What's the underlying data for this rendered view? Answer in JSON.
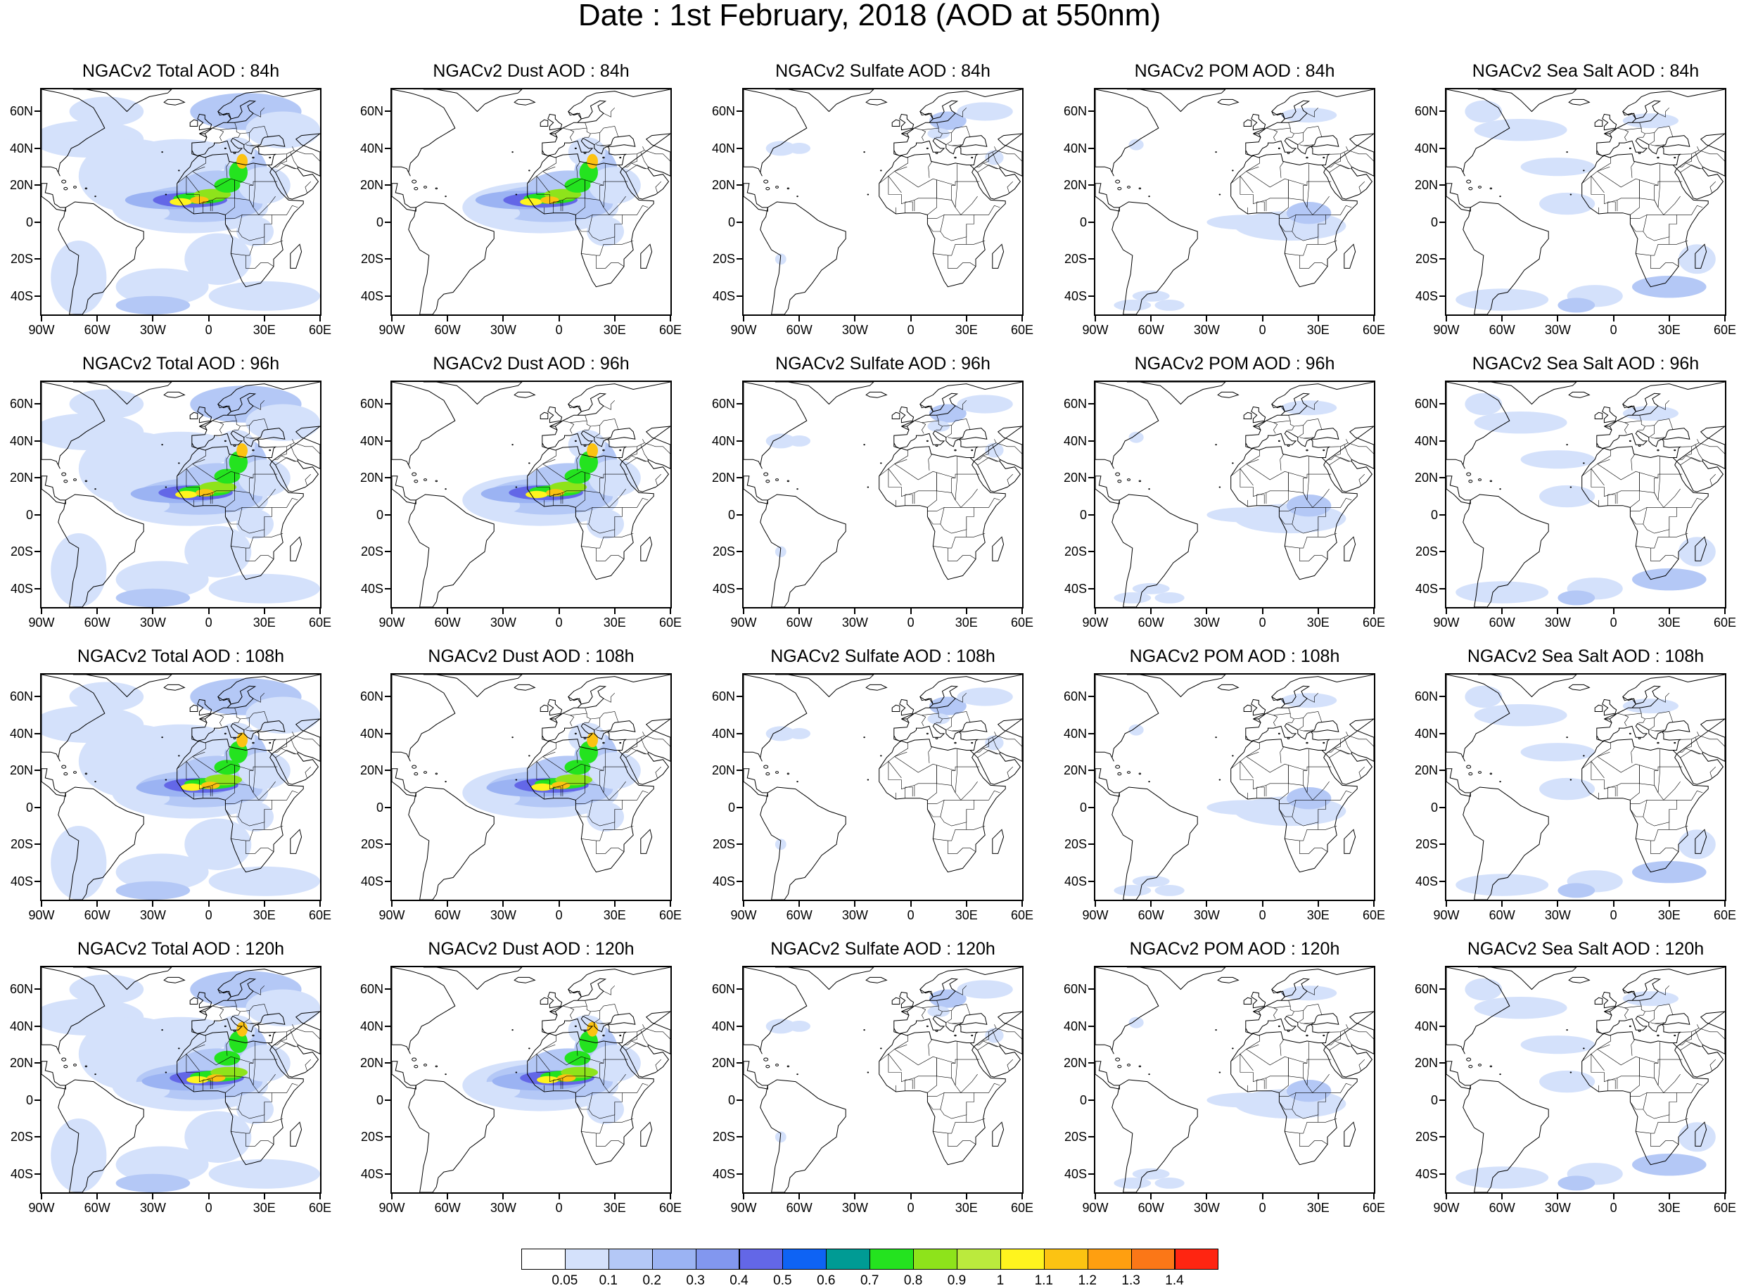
{
  "title": "Date : 1st February, 2018 (AOD at 550nm)",
  "lat_labels": [
    "60N",
    "40N",
    "20N",
    "0",
    "20S",
    "40S"
  ],
  "lon_labels": [
    "90W",
    "60W",
    "30W",
    "0",
    "30E",
    "60E"
  ],
  "colorbar": {
    "colors": [
      "#ffffff",
      "#d4e1fb",
      "#b4c8f6",
      "#9bb3f3",
      "#8297ef",
      "#6367e7",
      "#0e63f4",
      "#009b94",
      "#24e31f",
      "#8ee31b",
      "#bbea3d",
      "#fff41e",
      "#fcc312",
      "#ff9f10",
      "#fb7717",
      "#ff2511"
    ],
    "labels": [
      "0.05",
      "0.1",
      "0.2",
      "0.3",
      "0.4",
      "0.5",
      "0.6",
      "0.7",
      "0.8",
      "0.9",
      "1",
      "1.1",
      "1.2",
      "1.3",
      "1.4"
    ]
  },
  "panels": [
    {
      "title": "NGACv2 Total AOD : 84h",
      "species": "total"
    },
    {
      "title": "NGACv2 Dust AOD : 84h",
      "species": "dust"
    },
    {
      "title": "NGACv2 Sulfate AOD : 84h",
      "species": "sulfate"
    },
    {
      "title": "NGACv2 POM AOD : 84h",
      "species": "pom"
    },
    {
      "title": "NGACv2 Sea Salt AOD : 84h",
      "species": "seasalt"
    },
    {
      "title": "NGACv2 Total AOD : 96h",
      "species": "total"
    },
    {
      "title": "NGACv2 Dust AOD : 96h",
      "species": "dust"
    },
    {
      "title": "NGACv2 Sulfate AOD : 96h",
      "species": "sulfate"
    },
    {
      "title": "NGACv2 POM AOD : 96h",
      "species": "pom"
    },
    {
      "title": "NGACv2 Sea Salt AOD : 96h",
      "species": "seasalt"
    },
    {
      "title": "NGACv2 Total AOD : 108h",
      "species": "total"
    },
    {
      "title": "NGACv2 Dust AOD : 108h",
      "species": "dust"
    },
    {
      "title": "NGACv2 Sulfate AOD : 108h",
      "species": "sulfate"
    },
    {
      "title": "NGACv2 POM AOD : 108h",
      "species": "pom"
    },
    {
      "title": "NGACv2 Sea Salt AOD : 108h",
      "species": "seasalt"
    },
    {
      "title": "NGACv2 Total AOD : 120h",
      "species": "total"
    },
    {
      "title": "NGACv2 Dust AOD : 120h",
      "species": "dust"
    },
    {
      "title": "NGACv2 Sulfate AOD : 120h",
      "species": "sulfate"
    },
    {
      "title": "NGACv2 POM AOD : 120h",
      "species": "pom"
    },
    {
      "title": "NGACv2 Sea Salt  AOD : 120h",
      "species": "seasalt"
    }
  ]
}
